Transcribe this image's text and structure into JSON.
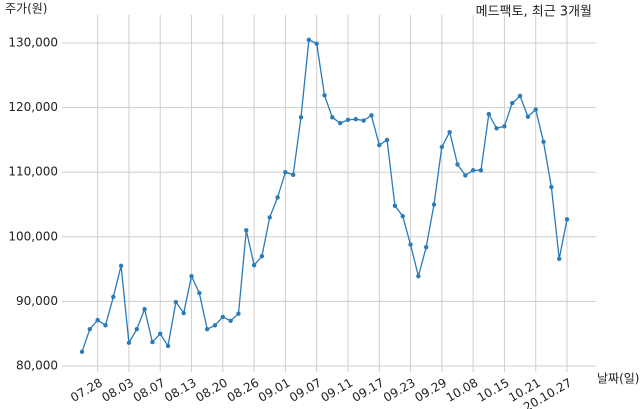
{
  "chart_data": {
    "type": "line",
    "title": "메드팩토, 최근 3개월",
    "ylabel": "주가(원)",
    "xlabel": "날짜(일)",
    "categories": [
      null,
      null,
      "07.28",
      null,
      null,
      null,
      "08.03",
      null,
      null,
      null,
      "08.07",
      null,
      null,
      null,
      "08.13",
      null,
      null,
      null,
      "08.20",
      null,
      null,
      null,
      "08.26",
      null,
      null,
      null,
      "09.01",
      null,
      null,
      null,
      "09.07",
      null,
      null,
      null,
      "09.11",
      null,
      null,
      null,
      "09.17",
      null,
      null,
      null,
      "09.23",
      null,
      null,
      null,
      "09.29",
      null,
      null,
      null,
      "10.08",
      null,
      null,
      null,
      "10.15",
      null,
      null,
      null,
      "10.21",
      null,
      null,
      null,
      "20.10.27"
    ],
    "series": [
      {
        "name": "주가",
        "color": "#2b7bb9",
        "values": [
          82200,
          85700,
          87100,
          86300,
          90700,
          95500,
          83600,
          85700,
          88800,
          83700,
          85000,
          83100,
          89900,
          88200,
          93900,
          91300,
          85700,
          86300,
          87600,
          87000,
          88100,
          101000,
          95600,
          97000,
          103000,
          106100,
          110000,
          109600,
          118500,
          130500,
          129900,
          121900,
          118500,
          117600,
          118100,
          118200,
          118000,
          118800,
          114200,
          115000,
          104800,
          103200,
          98800,
          93900,
          98400,
          105000,
          113900,
          116200,
          111200,
          109500,
          110300,
          110300,
          119000,
          116800,
          117100,
          120700,
          121800,
          118600,
          119700,
          114700,
          107700,
          96600,
          102700
        ]
      }
    ],
    "ylim": [
      80000,
      130000
    ],
    "yticks": [
      {
        "value": 80000,
        "label": "80,000"
      },
      {
        "value": 90000,
        "label": "90,000"
      },
      {
        "value": 100000,
        "label": "100,000"
      },
      {
        "value": 110000,
        "label": "110,000"
      },
      {
        "value": 120000,
        "label": "120,000"
      },
      {
        "value": 130000,
        "label": "130,000"
      }
    ],
    "grid": true
  }
}
